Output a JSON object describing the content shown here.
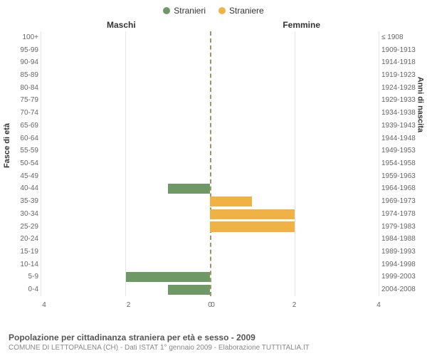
{
  "type": "population-pyramid",
  "legend": {
    "male": {
      "label": "Stranieri",
      "color": "#6e9966"
    },
    "female": {
      "label": "Straniere",
      "color": "#f0b145"
    }
  },
  "gender_headers": {
    "male": "Maschi",
    "female": "Femmine"
  },
  "axis_titles": {
    "left": "Fasce di età",
    "right": "Anni di nascita"
  },
  "x_axis": {
    "max": 4,
    "ticks_left": [
      4,
      2,
      0
    ],
    "ticks_right": [
      0,
      2,
      4
    ]
  },
  "colors": {
    "grid": "#e5e5e5",
    "center_line": "#999966",
    "text": "#666",
    "background": "#ffffff"
  },
  "rows": [
    {
      "age": "100+",
      "year": "≤ 1908",
      "male": 0,
      "female": 0
    },
    {
      "age": "95-99",
      "year": "1909-1913",
      "male": 0,
      "female": 0
    },
    {
      "age": "90-94",
      "year": "1914-1918",
      "male": 0,
      "female": 0
    },
    {
      "age": "85-89",
      "year": "1919-1923",
      "male": 0,
      "female": 0
    },
    {
      "age": "80-84",
      "year": "1924-1928",
      "male": 0,
      "female": 0
    },
    {
      "age": "75-79",
      "year": "1929-1933",
      "male": 0,
      "female": 0
    },
    {
      "age": "70-74",
      "year": "1934-1938",
      "male": 0,
      "female": 0
    },
    {
      "age": "65-69",
      "year": "1939-1943",
      "male": 0,
      "female": 0
    },
    {
      "age": "60-64",
      "year": "1944-1948",
      "male": 0,
      "female": 0
    },
    {
      "age": "55-59",
      "year": "1949-1953",
      "male": 0,
      "female": 0
    },
    {
      "age": "50-54",
      "year": "1954-1958",
      "male": 0,
      "female": 0
    },
    {
      "age": "45-49",
      "year": "1959-1963",
      "male": 0,
      "female": 0
    },
    {
      "age": "40-44",
      "year": "1964-1968",
      "male": 1,
      "female": 0
    },
    {
      "age": "35-39",
      "year": "1969-1973",
      "male": 0,
      "female": 1
    },
    {
      "age": "30-34",
      "year": "1974-1978",
      "male": 0,
      "female": 2
    },
    {
      "age": "25-29",
      "year": "1979-1983",
      "male": 0,
      "female": 2
    },
    {
      "age": "20-24",
      "year": "1984-1988",
      "male": 0,
      "female": 0
    },
    {
      "age": "15-19",
      "year": "1989-1993",
      "male": 0,
      "female": 0
    },
    {
      "age": "10-14",
      "year": "1994-1998",
      "male": 0,
      "female": 0
    },
    {
      "age": "5-9",
      "year": "1999-2003",
      "male": 2,
      "female": 0
    },
    {
      "age": "0-4",
      "year": "2004-2008",
      "male": 1,
      "female": 0
    }
  ],
  "footer": {
    "title": "Popolazione per cittadinanza straniera per età e sesso - 2009",
    "subtitle": "COMUNE DI LETTOPALENA (CH) - Dati ISTAT 1° gennaio 2009 - Elaborazione TUTTITALIA.IT"
  }
}
